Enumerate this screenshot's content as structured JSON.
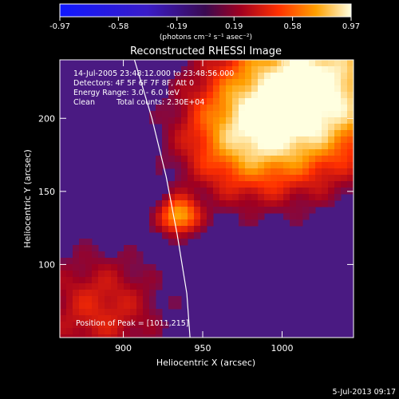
{
  "colorbar": {
    "ticks": [
      "-0.97",
      "-0.58",
      "-0.19",
      "0.19",
      "0.58",
      "0.97"
    ],
    "tick_values": [
      -0.97,
      -0.58,
      -0.19,
      0.19,
      0.58,
      0.97
    ],
    "range": [
      -0.97,
      0.97
    ],
    "units": "(photons cm⁻² s⁻¹ asec⁻²)"
  },
  "colors": {
    "negative": "#1a2cff",
    "background_plasma": "#4a1a82",
    "bright": "#ffff60",
    "limb_line": "#ffffff"
  },
  "chart_data": {
    "type": "heatmap",
    "title": "Reconstructed RHESSI Image",
    "xlabel": "Heliocentric X (arcsec)",
    "ylabel": "Heliocentric Y (arcsec)",
    "xlim": [
      860,
      1045
    ],
    "ylim": [
      50,
      240
    ],
    "xticks": [
      900,
      950,
      1000
    ],
    "yticks": [
      100,
      150,
      200
    ],
    "annotations": {
      "time": "14-Jul-2005 23:48:12.000 to 23:48:56.000",
      "detectors": "Detectors: 4F 5F 6F 7F 8F, Att 0",
      "energy": "Energy Range: 3.0 - 6.0 keV",
      "clean": "Clean",
      "counts": "Total counts: 2.30E+04",
      "peak": "Position of Peak = [1011,215]"
    },
    "peak": {
      "x": 1011,
      "y": 215
    },
    "sources": [
      {
        "x": 1020,
        "y": 220,
        "sigma": 40,
        "amp": 0.97
      },
      {
        "x": 975,
        "y": 185,
        "sigma": 30,
        "amp": 0.55
      },
      {
        "x": 935,
        "y": 133,
        "sigma": 9,
        "amp": 0.7
      },
      {
        "x": 885,
        "y": 70,
        "sigma": 30,
        "amp": 0.4
      }
    ],
    "limb": [
      [
        907,
        240
      ],
      [
        918,
        200
      ],
      [
        927,
        160
      ],
      [
        934,
        120
      ],
      [
        940,
        80
      ],
      [
        942,
        50
      ]
    ]
  },
  "footer": {
    "date": "5-Jul-2013 09:17"
  }
}
